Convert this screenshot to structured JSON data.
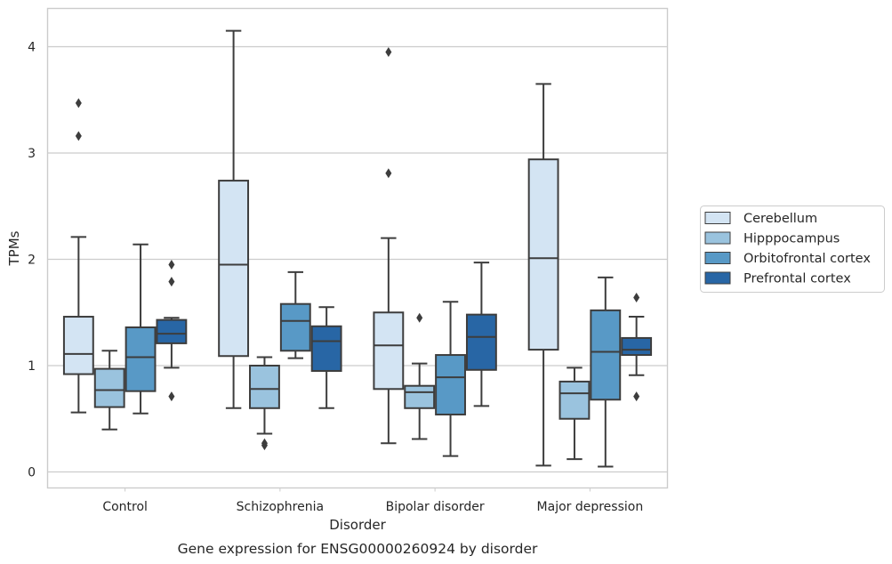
{
  "chart_data": {
    "type": "box",
    "title": "",
    "caption": "Gene expression for ENSG00000260924 by disorder",
    "xlabel": "Disorder",
    "ylabel": "TPMs",
    "ylim": [
      -0.15,
      4.35
    ],
    "yticks": [
      0,
      1,
      2,
      3,
      4
    ],
    "grid": "horizontal",
    "legend_placement": "outside-right",
    "categories": [
      "Control",
      "Schizophrenia",
      "Bipolar disorder",
      "Major depression"
    ],
    "series": [
      {
        "name": "Cerebellum",
        "color": "#d3e4f3",
        "boxes": [
          {
            "whislo": 0.56,
            "q1": 0.92,
            "med": 1.11,
            "q3": 1.46,
            "whishi": 2.21,
            "fliers": [
              3.16,
              3.47
            ]
          },
          {
            "whislo": 0.6,
            "q1": 1.09,
            "med": 1.95,
            "q3": 2.74,
            "whishi": 4.15,
            "fliers": []
          },
          {
            "whislo": 0.27,
            "q1": 0.78,
            "med": 1.19,
            "q3": 1.5,
            "whishi": 2.2,
            "fliers": [
              2.81,
              3.95
            ]
          },
          {
            "whislo": 0.06,
            "q1": 1.15,
            "med": 2.01,
            "q3": 2.94,
            "whishi": 3.65,
            "fliers": []
          }
        ]
      },
      {
        "name": "Hipppocampus",
        "color": "#9ac3de",
        "boxes": [
          {
            "whislo": 0.4,
            "q1": 0.61,
            "med": 0.77,
            "q3": 0.97,
            "whishi": 1.14,
            "fliers": []
          },
          {
            "whislo": 0.36,
            "q1": 0.6,
            "med": 0.78,
            "q3": 1.0,
            "whishi": 1.08,
            "fliers": [
              0.25,
              0.27
            ]
          },
          {
            "whislo": 0.31,
            "q1": 0.6,
            "med": 0.75,
            "q3": 0.81,
            "whishi": 1.02,
            "fliers": [
              1.45
            ]
          },
          {
            "whislo": 0.12,
            "q1": 0.5,
            "med": 0.74,
            "q3": 0.85,
            "whishi": 0.98,
            "fliers": []
          }
        ]
      },
      {
        "name": "Orbitofrontal cortex",
        "color": "#5899c6",
        "boxes": [
          {
            "whislo": 0.55,
            "q1": 0.76,
            "med": 1.08,
            "q3": 1.36,
            "whishi": 2.14,
            "fliers": []
          },
          {
            "whislo": 1.07,
            "q1": 1.14,
            "med": 1.42,
            "q3": 1.58,
            "whishi": 1.88,
            "fliers": []
          },
          {
            "whislo": 0.15,
            "q1": 0.54,
            "med": 0.89,
            "q3": 1.1,
            "whishi": 1.6,
            "fliers": []
          },
          {
            "whislo": 0.05,
            "q1": 0.68,
            "med": 1.13,
            "q3": 1.52,
            "whishi": 1.83,
            "fliers": []
          }
        ]
      },
      {
        "name": "Prefrontal cortex",
        "color": "#2866a5",
        "boxes": [
          {
            "whislo": 0.98,
            "q1": 1.21,
            "med": 1.3,
            "q3": 1.43,
            "whishi": 1.45,
            "fliers": [
              0.71,
              1.79,
              1.95
            ]
          },
          {
            "whislo": 0.6,
            "q1": 0.95,
            "med": 1.23,
            "q3": 1.37,
            "whishi": 1.55,
            "fliers": []
          },
          {
            "whislo": 0.62,
            "q1": 0.96,
            "med": 1.27,
            "q3": 1.48,
            "whishi": 1.97,
            "fliers": []
          },
          {
            "whislo": 0.91,
            "q1": 1.1,
            "med": 1.15,
            "q3": 1.26,
            "whishi": 1.46,
            "fliers": [
              0.71,
              1.64
            ]
          }
        ]
      }
    ]
  }
}
